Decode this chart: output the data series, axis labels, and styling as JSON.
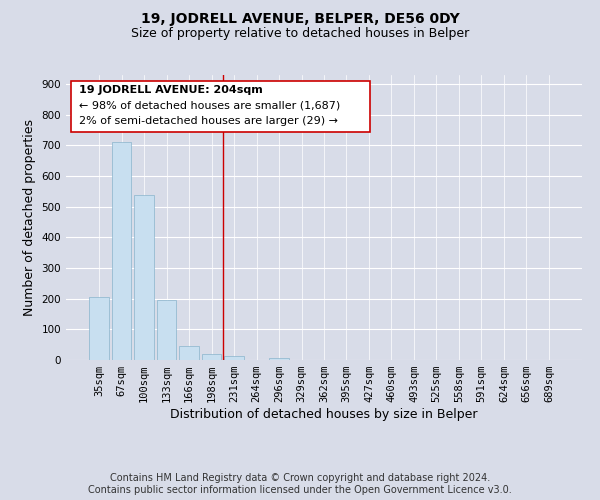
{
  "title": "19, JODRELL AVENUE, BELPER, DE56 0DY",
  "subtitle": "Size of property relative to detached houses in Belper",
  "xlabel": "Distribution of detached houses by size in Belper",
  "ylabel": "Number of detached properties",
  "bar_labels": [
    "35sqm",
    "67sqm",
    "100sqm",
    "133sqm",
    "166sqm",
    "198sqm",
    "231sqm",
    "264sqm",
    "296sqm",
    "329sqm",
    "362sqm",
    "395sqm",
    "427sqm",
    "460sqm",
    "493sqm",
    "525sqm",
    "558sqm",
    "591sqm",
    "624sqm",
    "656sqm",
    "689sqm"
  ],
  "bar_values": [
    205,
    710,
    537,
    196,
    46,
    18,
    12,
    0,
    8,
    0,
    0,
    0,
    0,
    0,
    0,
    0,
    0,
    0,
    0,
    0,
    0
  ],
  "bar_color": "#c8dff0",
  "bar_edge_color": "#c8dff0",
  "vline_x": 5.5,
  "vline_color": "#cc0000",
  "ylim": [
    0,
    930
  ],
  "yticks": [
    0,
    100,
    200,
    300,
    400,
    500,
    600,
    700,
    800,
    900
  ],
  "ann_line1": "19 JODRELL AVENUE: 204sqm",
  "ann_line2": "← 98% of detached houses are smaller (1,687)",
  "ann_line3": "2% of semi-detached houses are larger (29) →",
  "footnote": "Contains HM Land Registry data © Crown copyright and database right 2024.\nContains public sector information licensed under the Open Government Licence v3.0.",
  "grid_color": "#ffffff",
  "bg_color": "#d8dce8",
  "plot_bg_color": "#d8dce8",
  "title_fontsize": 10,
  "subtitle_fontsize": 9,
  "axis_label_fontsize": 9,
  "tick_fontsize": 7.5,
  "footnote_fontsize": 7,
  "ann_fontsize": 8
}
